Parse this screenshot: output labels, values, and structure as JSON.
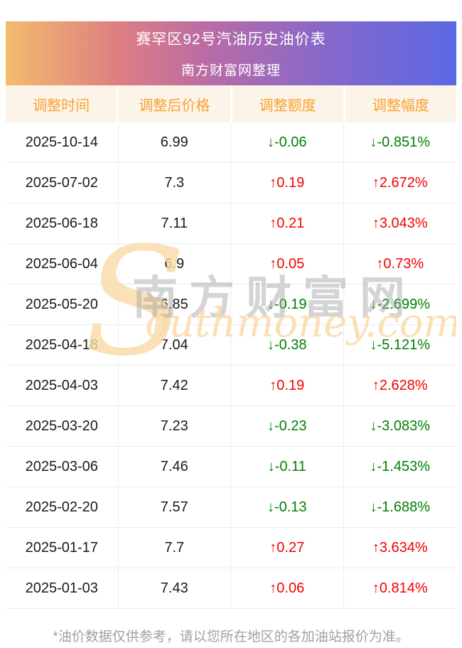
{
  "banner": {
    "title": "赛罕区92号汽油历史油价表",
    "subtitle": "南方财富网整理"
  },
  "table": {
    "headers": [
      "调整时间",
      "调整后价格",
      "调整额度",
      "调整幅度"
    ],
    "rows": [
      {
        "date": "2025-10-14",
        "price": "6.99",
        "change": "↓-0.06",
        "pct": "↓-0.851%",
        "dir": "down"
      },
      {
        "date": "2025-07-02",
        "price": "7.3",
        "change": "↑0.19",
        "pct": "↑2.672%",
        "dir": "up"
      },
      {
        "date": "2025-06-18",
        "price": "7.11",
        "change": "↑0.21",
        "pct": "↑3.043%",
        "dir": "up"
      },
      {
        "date": "2025-06-04",
        "price": "6.9",
        "change": "↑0.05",
        "pct": "↑0.73%",
        "dir": "up"
      },
      {
        "date": "2025-05-20",
        "price": "6.85",
        "change": "↓-0.19",
        "pct": "↓-2.699%",
        "dir": "down"
      },
      {
        "date": "2025-04-18",
        "price": "7.04",
        "change": "↓-0.38",
        "pct": "↓-5.121%",
        "dir": "down"
      },
      {
        "date": "2025-04-03",
        "price": "7.42",
        "change": "↑0.19",
        "pct": "↑2.628%",
        "dir": "up"
      },
      {
        "date": "2025-03-20",
        "price": "7.23",
        "change": "↓-0.23",
        "pct": "↓-3.083%",
        "dir": "down"
      },
      {
        "date": "2025-03-06",
        "price": "7.46",
        "change": "↓-0.11",
        "pct": "↓-1.453%",
        "dir": "down"
      },
      {
        "date": "2025-02-20",
        "price": "7.57",
        "change": "↓-0.13",
        "pct": "↓-1.688%",
        "dir": "down"
      },
      {
        "date": "2025-01-17",
        "price": "7.7",
        "change": "↑0.27",
        "pct": "↑3.634%",
        "dir": "up"
      },
      {
        "date": "2025-01-03",
        "price": "7.43",
        "change": "↑0.06",
        "pct": "↑0.814%",
        "dir": "up"
      }
    ]
  },
  "watermark": {
    "big_s": "S",
    "cn": "南方财富网",
    "en": "outhmoney.com"
  },
  "footer": {
    "note": "*油价数据仅供参考，请以您所在地区的各加油站报价为准。"
  },
  "colors": {
    "up_red": "#f40000",
    "down_green": "#008000",
    "header_text_orange": "#f7a22f",
    "header_bg_cream": "#fdf4e9",
    "banner_gradient": [
      "#f3bc6e",
      "#dd7e82",
      "#b56baa",
      "#8568cc",
      "#5b68e2"
    ],
    "footnote_gray": "#a0a0a0",
    "row_border": "#e8edf2"
  },
  "chart_data": {
    "type": "table",
    "title": "赛罕区92号汽油历史油价表",
    "subtitle": "南方财富网整理",
    "columns": [
      "调整时间",
      "调整后价格",
      "调整额度",
      "调整幅度"
    ],
    "rows": [
      [
        "2025-10-14",
        6.99,
        -0.06,
        "-0.851%"
      ],
      [
        "2025-07-02",
        7.3,
        0.19,
        "2.672%"
      ],
      [
        "2025-06-18",
        7.11,
        0.21,
        "3.043%"
      ],
      [
        "2025-06-04",
        6.9,
        0.05,
        "0.73%"
      ],
      [
        "2025-05-20",
        6.85,
        -0.19,
        "-2.699%"
      ],
      [
        "2025-04-18",
        7.04,
        -0.38,
        "-5.121%"
      ],
      [
        "2025-04-03",
        7.42,
        0.19,
        "2.628%"
      ],
      [
        "2025-03-20",
        7.23,
        -0.23,
        "-3.083%"
      ],
      [
        "2025-03-06",
        7.46,
        -0.11,
        "-1.453%"
      ],
      [
        "2025-02-20",
        7.57,
        -0.13,
        "-1.688%"
      ],
      [
        "2025-01-17",
        7.7,
        0.27,
        "3.634%"
      ],
      [
        "2025-01-03",
        7.43,
        0.06,
        "0.814%"
      ]
    ],
    "notes": "*油价数据仅供参考，请以您所在地区的各加油站报价为准。"
  }
}
